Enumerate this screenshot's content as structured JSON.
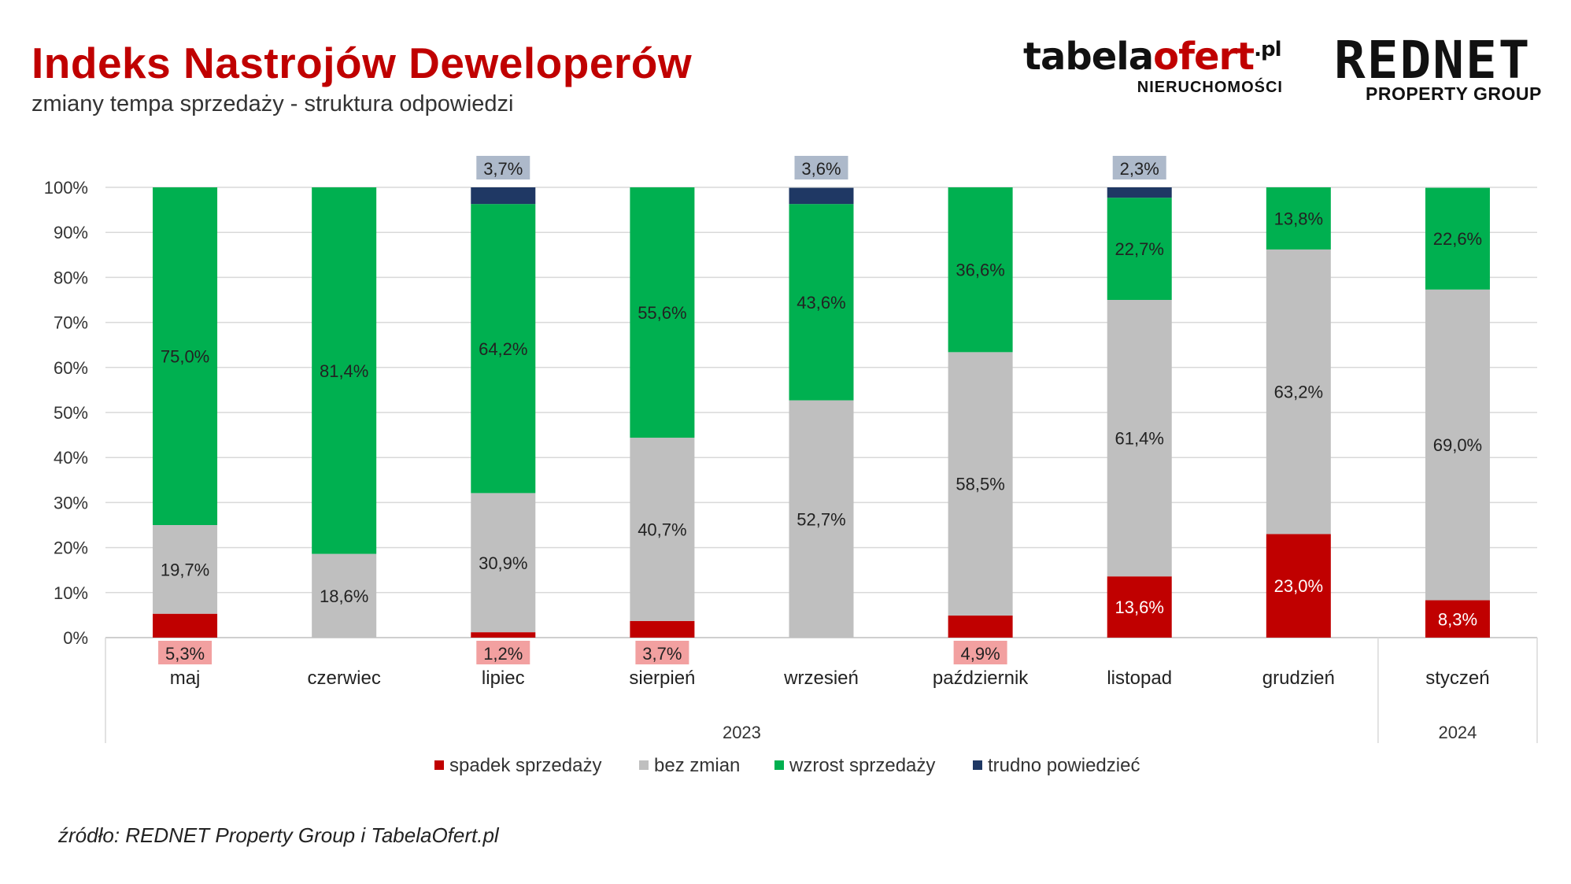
{
  "header": {
    "title": "Indeks Nastrojów Deweloperów",
    "subtitle": "zmiany tempa sprzedaży - struktura odpowiedzi"
  },
  "logos": {
    "tabela_main": "tabela",
    "tabela_accent": "ofert",
    "tabela_suffix": ".pl",
    "tabela_tag": "NIERUCHOMOŚCI",
    "rednet_main": "REDNET",
    "rednet_tag": "PROPERTY GROUP"
  },
  "source": "źródło: REDNET Property Group i TabelaOfert.pl",
  "colors": {
    "spadek": "#c00000",
    "bez_zmian": "#bfbfbf",
    "wzrost": "#00b050",
    "trudno": "#1f3864",
    "label_bg_red": "#f2a0a0",
    "label_bg_blue": "#adb9ca",
    "gridline": "#d9d9d9"
  },
  "chart_data": {
    "type": "bar",
    "stacked": true,
    "title": "Indeks Nastrojów Deweloperów",
    "xlabel": "",
    "ylabel": "",
    "ylim": [
      0,
      100
    ],
    "yticks": [
      "0%",
      "10%",
      "20%",
      "30%",
      "40%",
      "50%",
      "60%",
      "70%",
      "80%",
      "90%",
      "100%"
    ],
    "grid": true,
    "legend_position": "bottom",
    "categories": [
      "maj",
      "czerwiec",
      "lipiec",
      "sierpień",
      "wrzesień",
      "październik",
      "listopad",
      "grudzień",
      "styczeń"
    ],
    "groups": [
      {
        "label": "2023",
        "count": 8
      },
      {
        "label": "2024",
        "count": 1
      }
    ],
    "series": [
      {
        "name": "spadek sprzedaży",
        "key": "spadek",
        "values": [
          5.3,
          0,
          1.2,
          3.7,
          0,
          4.9,
          13.6,
          23.0,
          8.3
        ],
        "labels": [
          "5,3%",
          "",
          "1,2%",
          "3,7%",
          "",
          "4,9%",
          "13,6%",
          "23,0%",
          "8,3%"
        ]
      },
      {
        "name": "bez zmian",
        "key": "bez_zmian",
        "values": [
          19.7,
          18.6,
          30.9,
          40.7,
          52.7,
          58.5,
          61.4,
          63.2,
          69.0
        ],
        "labels": [
          "19,7%",
          "18,6%",
          "30,9%",
          "40,7%",
          "52,7%",
          "58,5%",
          "61,4%",
          "63,2%",
          "69,0%"
        ]
      },
      {
        "name": "wzrost sprzedaży",
        "key": "wzrost",
        "values": [
          75.0,
          81.4,
          64.2,
          55.6,
          43.6,
          36.6,
          22.7,
          13.8,
          22.6
        ],
        "labels": [
          "75,0%",
          "81,4%",
          "64,2%",
          "55,6%",
          "43,6%",
          "36,6%",
          "22,7%",
          "13,8%",
          "22,6%"
        ]
      },
      {
        "name": "trudno powiedzieć",
        "key": "trudno",
        "values": [
          0,
          0,
          3.7,
          0,
          3.6,
          0,
          2.3,
          0,
          0
        ],
        "labels": [
          "",
          "",
          "3,7%",
          "",
          "3,6%",
          "",
          "2,3%",
          "",
          ""
        ]
      }
    ]
  }
}
